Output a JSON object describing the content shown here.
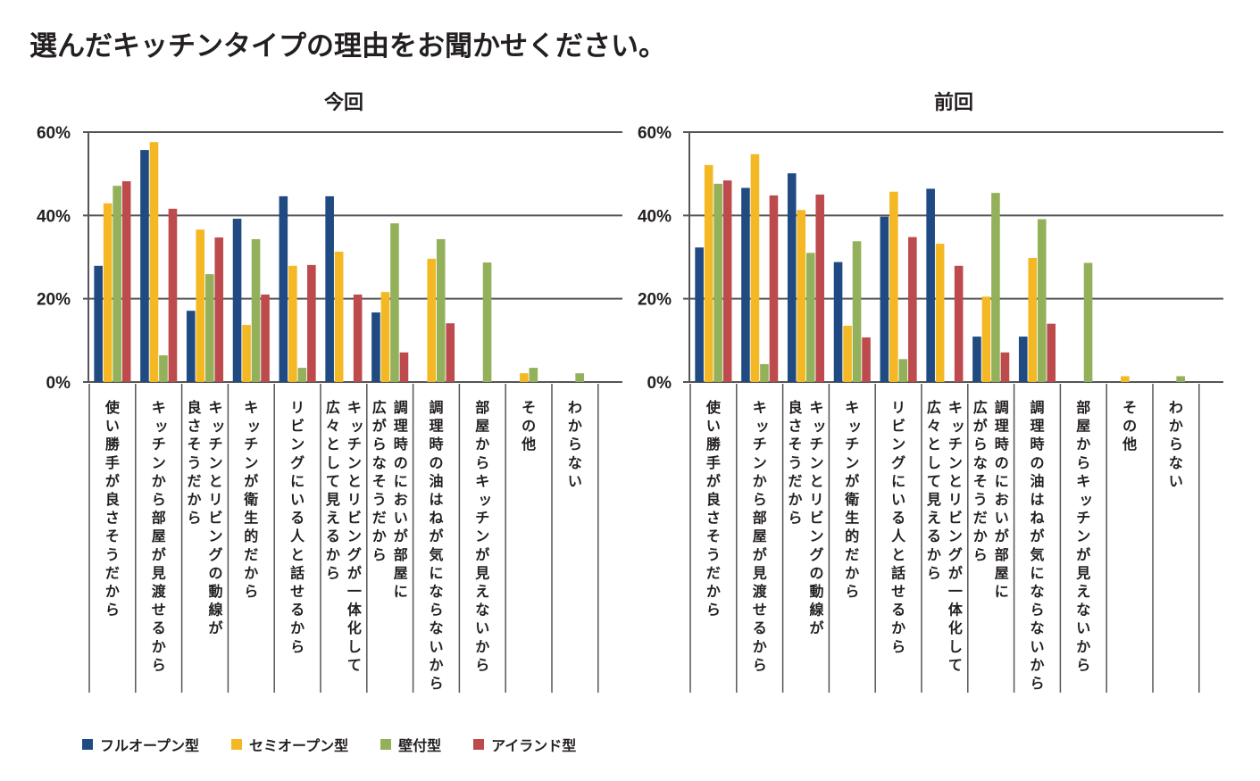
{
  "title": "選んだキッチンタイプの理由をお聞かせください。",
  "chart_data": [
    {
      "type": "bar",
      "title": "今回",
      "xlabel": "",
      "ylabel": "",
      "ylim": [
        0,
        60
      ],
      "yticks": [
        "0%",
        "20%",
        "40%",
        "60%"
      ],
      "grid": true,
      "legend": "bottom-left",
      "categories": [
        [
          "使い勝手が良さそうだから"
        ],
        [
          "キッチンから部屋が見渡せるから"
        ],
        [
          "キッチンとリビングの動線が",
          "良さそうだから"
        ],
        [
          "キッチンが衛生的だから"
        ],
        [
          "リビングにいる人と話せるから"
        ],
        [
          "キッチンとリビングが一体化して",
          "広々として見えるから"
        ],
        [
          "調理時のにおいが部屋に",
          "広がらなそうだから"
        ],
        [
          "調理時の油はねが気にならないから"
        ],
        [
          "部屋からキッチンが見えないから"
        ],
        [
          "その他"
        ],
        [
          "わからない"
        ]
      ],
      "series": [
        {
          "name": "フルオープン型",
          "color": "#1f4a82",
          "values": [
            27.9,
            55.7,
            17.1,
            39.2,
            44.6,
            44.6,
            16.7,
            0,
            0,
            0,
            0
          ]
        },
        {
          "name": "セミオープン型",
          "color": "#f4b824",
          "values": [
            42.9,
            57.6,
            36.6,
            13.7,
            27.9,
            31.3,
            21.6,
            29.6,
            0,
            2.1,
            0
          ]
        },
        {
          "name": "壁付型",
          "color": "#93b05a",
          "values": [
            47.1,
            6.4,
            25.9,
            34.3,
            3.4,
            0,
            38.1,
            34.3,
            28.7,
            3.4,
            2.1
          ]
        },
        {
          "name": "アイランド型",
          "color": "#bd4a4c",
          "values": [
            48.2,
            41.6,
            34.7,
            21.0,
            28.1,
            21.0,
            7.1,
            14.1,
            0,
            0,
            0
          ]
        }
      ]
    },
    {
      "type": "bar",
      "title": "前回",
      "xlabel": "",
      "ylabel": "",
      "ylim": [
        0,
        60
      ],
      "yticks": [
        "0%",
        "20%",
        "40%",
        "60%"
      ],
      "grid": true,
      "legend": "bottom-left",
      "categories": [
        [
          "使い勝手が良さそうだから"
        ],
        [
          "キッチンから部屋が見渡せるから"
        ],
        [
          "キッチンとリビングの動線が",
          "良さそうだから"
        ],
        [
          "キッチンが衛生的だから"
        ],
        [
          "リビングにいる人と話せるから"
        ],
        [
          "キッチンとリビングが一体化して",
          "広々として見えるから"
        ],
        [
          "調理時のにおいが部屋に",
          "広がらなそうだから"
        ],
        [
          "調理時の油はねが気にならないから"
        ],
        [
          "部屋からキッチンが見えないから"
        ],
        [
          "その他"
        ],
        [
          "わからない"
        ]
      ],
      "series": [
        {
          "name": "フルオープン型",
          "color": "#1f4a82",
          "values": [
            32.3,
            46.6,
            50.1,
            28.8,
            39.7,
            46.4,
            10.9,
            10.9,
            0,
            0,
            0
          ]
        },
        {
          "name": "セミオープン型",
          "color": "#f4b824",
          "values": [
            52.1,
            54.7,
            41.3,
            13.5,
            45.7,
            33.2,
            20.5,
            29.8,
            0,
            1.4,
            0
          ]
        },
        {
          "name": "壁付型",
          "color": "#93b05a",
          "values": [
            47.6,
            4.3,
            31.0,
            33.8,
            5.5,
            0,
            45.4,
            39.1,
            28.6,
            0,
            1.4
          ]
        },
        {
          "name": "アイランド型",
          "color": "#bd4a4c",
          "values": [
            48.4,
            44.8,
            45.0,
            10.7,
            34.8,
            27.9,
            7.1,
            14.0,
            0,
            0,
            0
          ]
        }
      ]
    }
  ],
  "legend": [
    {
      "name": "フルオープン型",
      "color": "#1f4a82"
    },
    {
      "name": "セミオープン型",
      "color": "#f4b824"
    },
    {
      "name": "壁付型",
      "color": "#93b05a"
    },
    {
      "name": "アイランド型",
      "color": "#bd4a4c"
    }
  ]
}
